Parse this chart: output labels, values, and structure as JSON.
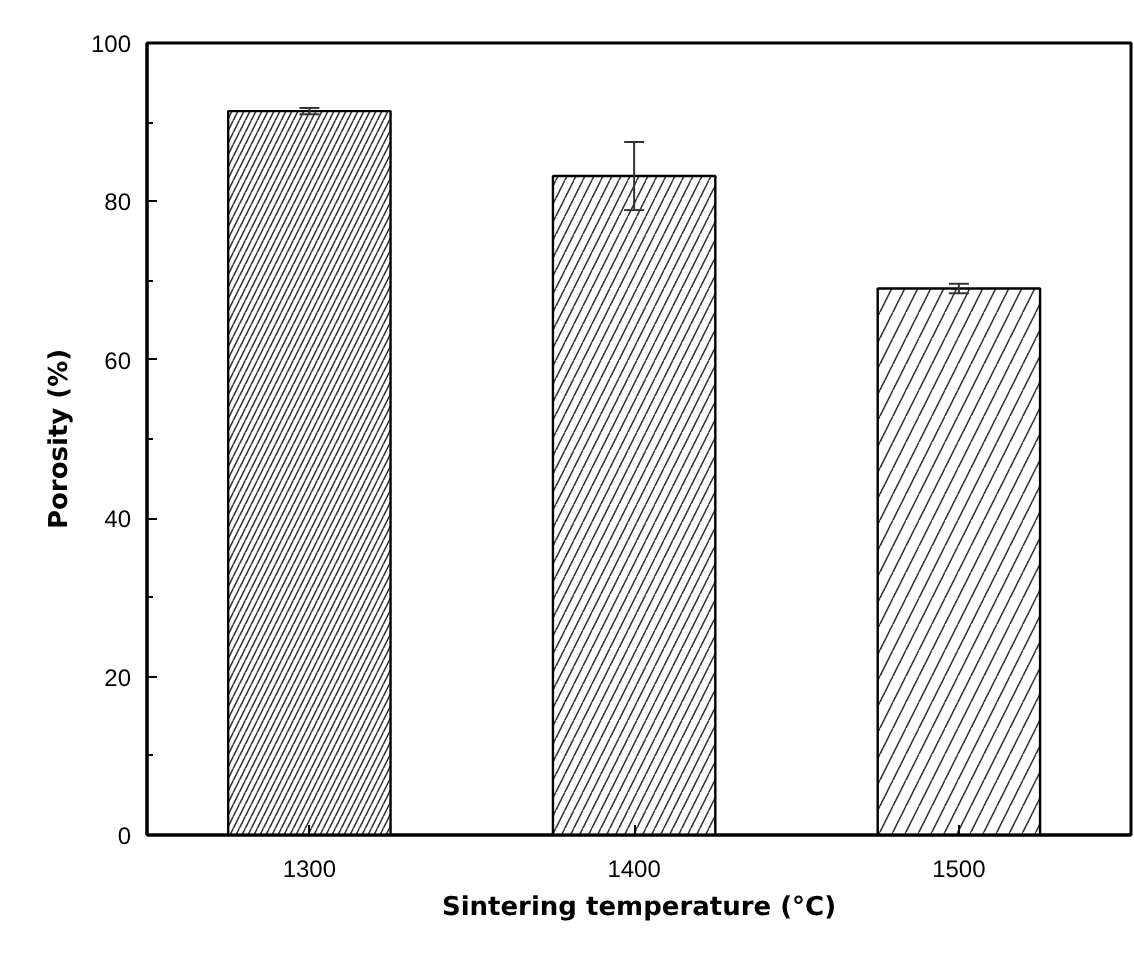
{
  "chart_data": {
    "type": "bar",
    "xlabel": "Sintering temperature (°C)",
    "ylabel": "Porosity (%)",
    "categories": [
      "1300",
      "1400",
      "1500"
    ],
    "values": [
      91.4,
      83.2,
      69.0
    ],
    "errors": [
      0.4,
      4.3,
      0.6
    ],
    "color": "#ffffff",
    "ylim": [
      0,
      100
    ],
    "yticks": [
      0,
      20,
      40,
      60,
      80,
      100
    ],
    "grid": false
  }
}
